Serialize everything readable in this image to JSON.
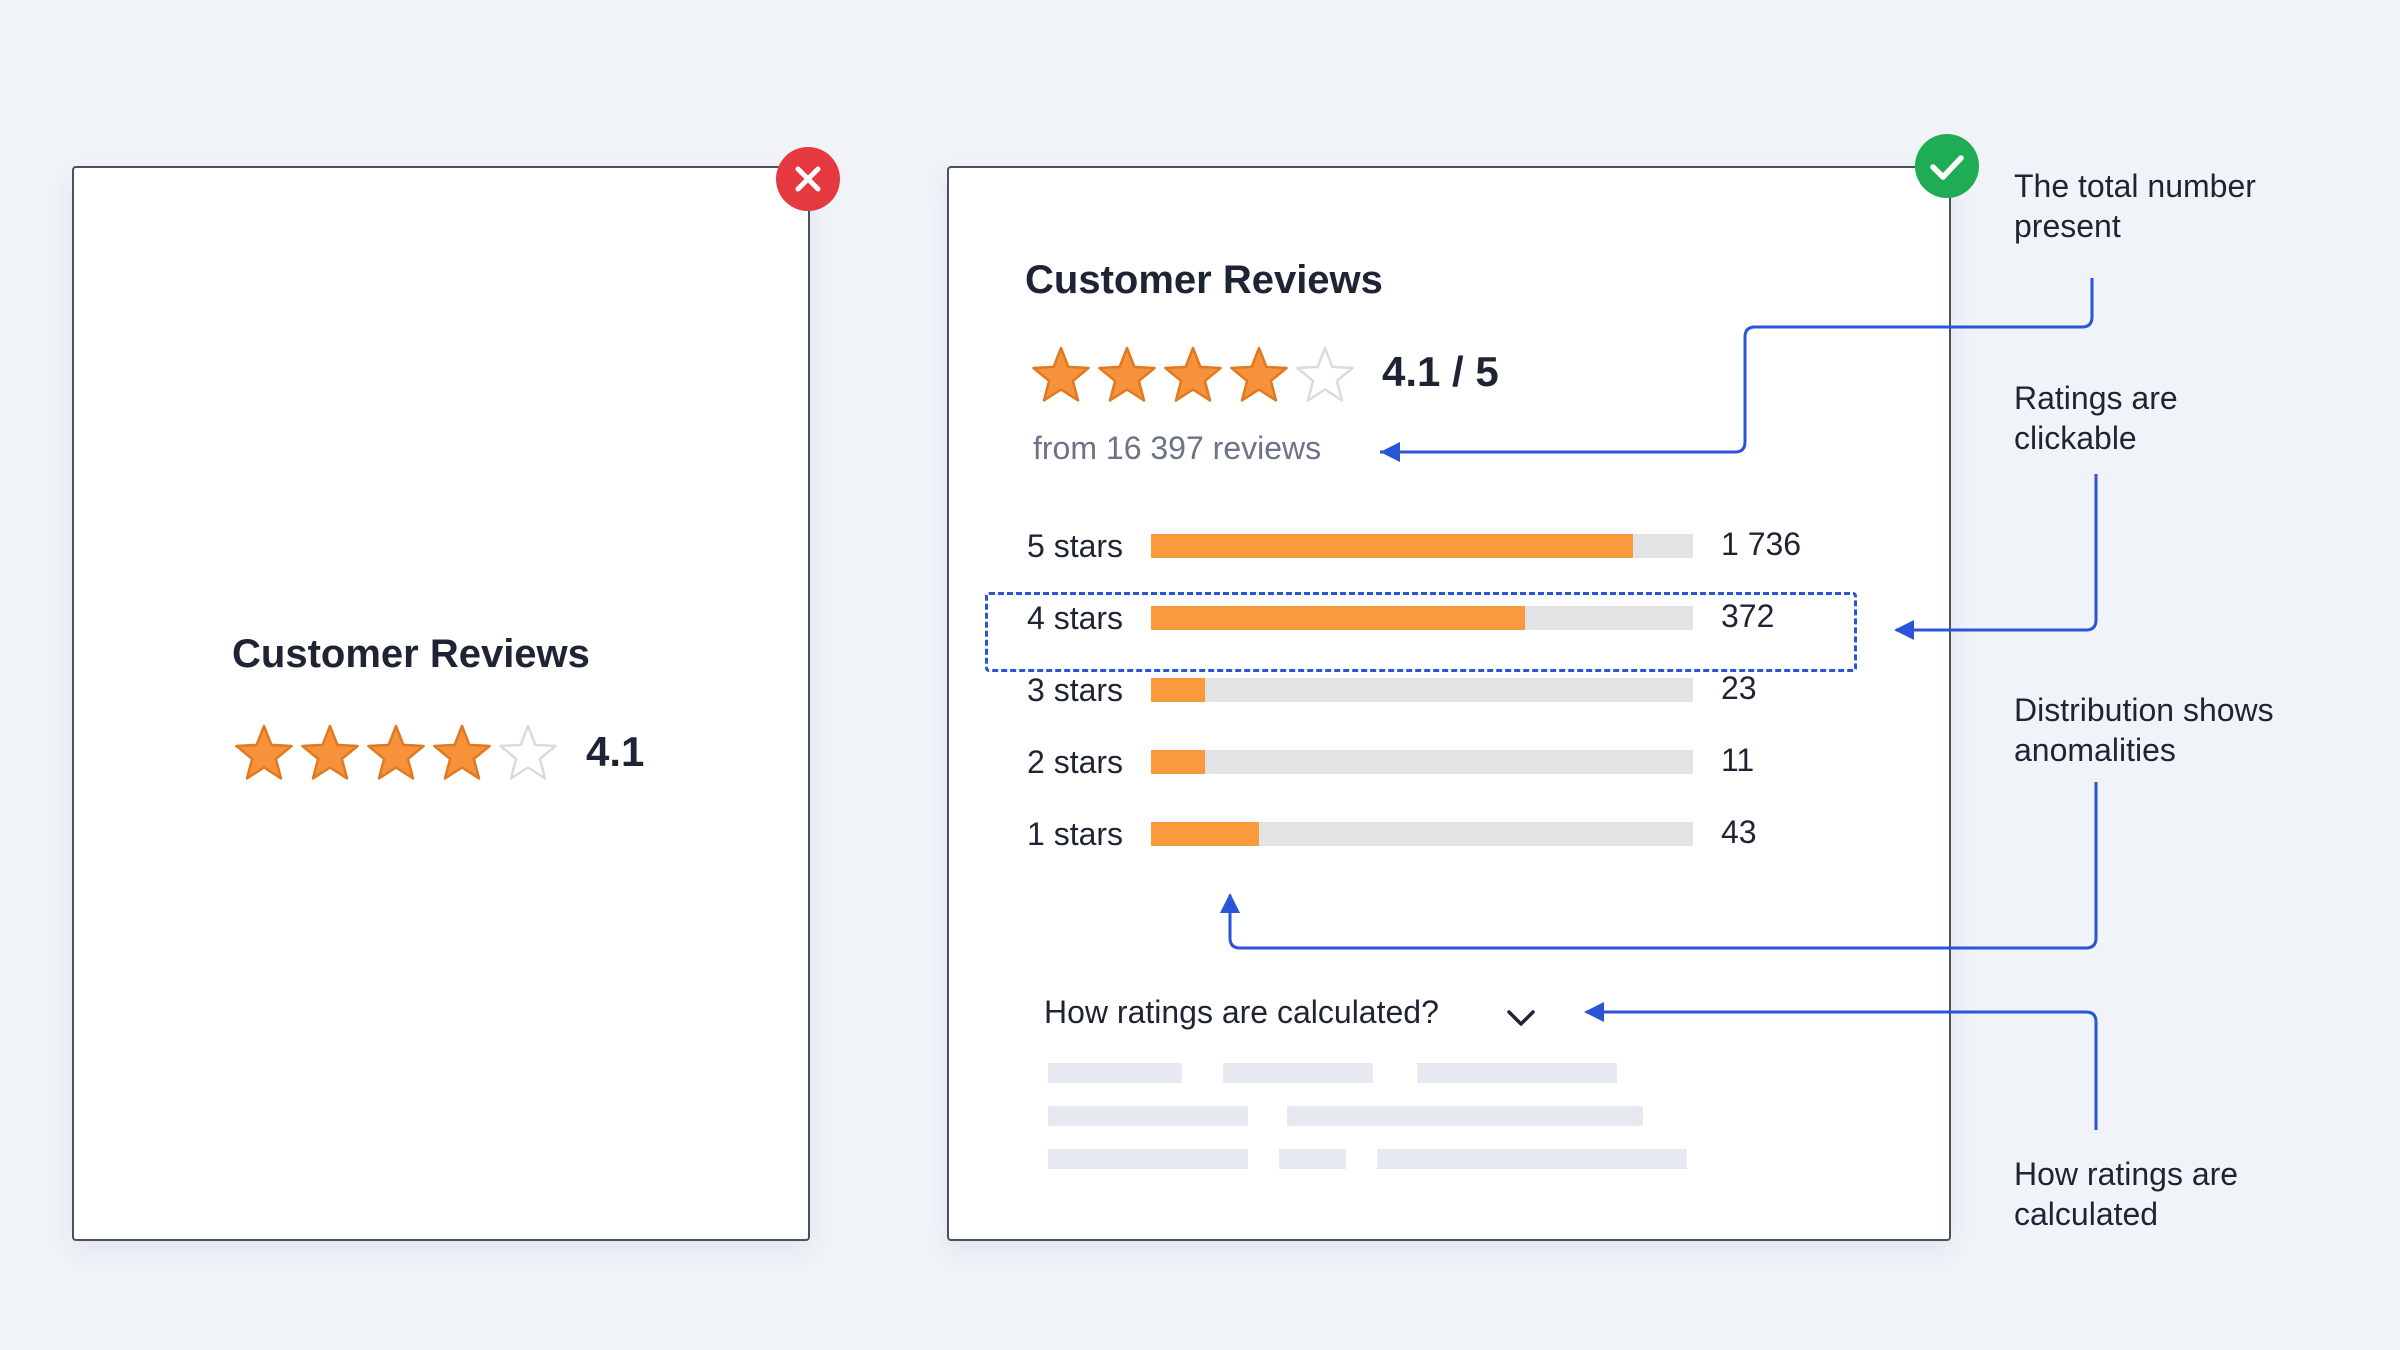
{
  "colors": {
    "background": "#f0f3f8",
    "star_filled": "#f7923a",
    "star_empty": "#d8dbe0",
    "bar_fill": "#f99a3f",
    "bar_track": "#e2e3e5",
    "connector": "#2a55d6",
    "bad_badge": "#e5393f",
    "good_badge": "#1ead55"
  },
  "bad_example": {
    "badge_icon": "close-icon",
    "title": "Customer Reviews",
    "rating_value": 4.1,
    "rating_text": "4.1",
    "stars_filled": 4,
    "stars_total": 5
  },
  "good_example": {
    "badge_icon": "check-icon",
    "title": "Customer Reviews",
    "rating_value": 4.1,
    "rating_text": "4.1 / 5",
    "stars_filled": 4,
    "stars_total": 5,
    "review_count_text": "from 16 397 reviews",
    "distribution": [
      {
        "label": "5 stars",
        "count": "1 736",
        "share": 0.89
      },
      {
        "label": "4 stars",
        "count": "372",
        "share": 0.69
      },
      {
        "label": "3 stars",
        "count": "23",
        "share": 0.1
      },
      {
        "label": "2 stars",
        "count": "11",
        "share": 0.1
      },
      {
        "label": "1 stars",
        "count": "43",
        "share": 0.2
      }
    ],
    "expander_label": "How ratings are calculated?",
    "expander_icon": "chevron-down-icon"
  },
  "annotations": {
    "total_number": "The total number\npresent",
    "ratings_clickable": "Ratings are\nclickable",
    "distribution_anomalies": "Distribution shows\nanomalities",
    "how_calculated": "How ratings are\ncalculated"
  }
}
